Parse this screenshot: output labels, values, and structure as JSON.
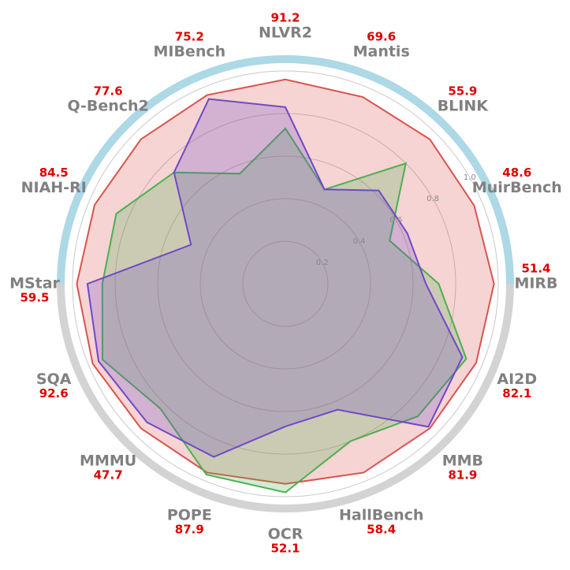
{
  "chart_data": {
    "type": "radar",
    "categories": [
      "NLVR2",
      "Mantis",
      "BLINK",
      "MuirBench",
      "MIRB",
      "AI2D",
      "MMB",
      "HallBench",
      "OCR",
      "POPE",
      "MMMU",
      "SQA",
      "MStar",
      "NIAH-RI",
      "Q-Bench2",
      "MIBench"
    ],
    "category_values": [
      91.2,
      69.6,
      55.9,
      48.6,
      51.4,
      82.1,
      81.9,
      58.4,
      52.1,
      87.9,
      47.7,
      92.6,
      59.5,
      84.5,
      77.6,
      75.2
    ],
    "rlim": [
      0,
      1.0
    ],
    "rticks": [
      0.2,
      0.4,
      0.6,
      0.8,
      {
        "value": 1.0,
        "label": "1.0"
      }
    ],
    "series": [
      {
        "color": "#d9534f",
        "values": [
          0.96,
          0.95,
          0.96,
          0.96,
          0.98,
          0.97,
          0.96,
          0.96,
          0.94,
          0.96,
          0.96,
          0.98,
          0.98,
          0.97,
          0.96,
          0.96
        ]
      },
      {
        "color": "#4cb050",
        "values": [
          0.73,
          0.48,
          0.8,
          0.53,
          0.72,
          0.92,
          0.88,
          0.8,
          0.98,
          0.97,
          0.83,
          0.93,
          0.86,
          0.86,
          0.74,
          0.56
        ]
      },
      {
        "color": "#7048c8",
        "values": [
          0.83,
          0.48,
          0.62,
          0.62,
          0.66,
          0.9,
          0.95,
          0.64,
          0.67,
          0.88,
          0.92,
          0.95,
          0.93,
          0.48,
          0.74,
          0.94
        ]
      }
    ]
  }
}
